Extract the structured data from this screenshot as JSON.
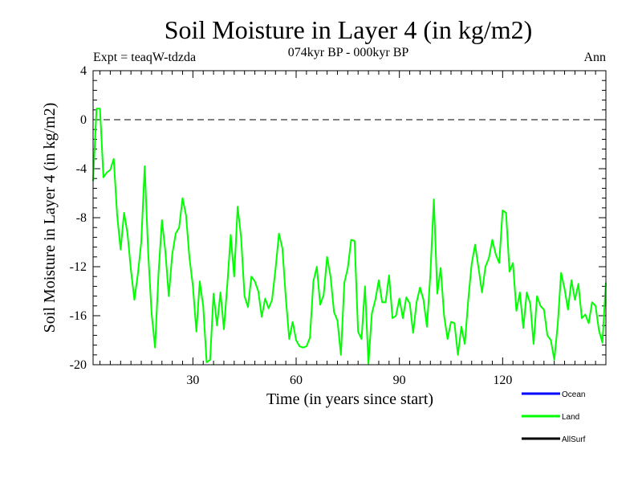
{
  "chart_data": {
    "type": "line",
    "title": "Soil Moisture in Layer 4 (in kg/m2)",
    "subtitle": "074kyr BP - 000kyr BP",
    "expt_label": "Expt = teaqW-tdzda",
    "season_label": "Ann",
    "xlabel": "Time (in years since start)",
    "ylabel": "Soil Moisture in Layer 4 (in kg/m2)",
    "xlim": [
      1,
      150
    ],
    "ylim": [
      -20,
      4
    ],
    "x_ticks": [
      30,
      60,
      90,
      120
    ],
    "x_tick_labels": [
      "30",
      "60",
      "90",
      "120"
    ],
    "y_ticks": [
      -20,
      -16,
      -12,
      -8,
      -4,
      0,
      4
    ],
    "y_tick_labels": [
      "-20",
      "-16",
      "-12",
      "-8",
      "-4",
      "0",
      "4"
    ],
    "reference_line": 0,
    "legend": [
      {
        "name": "Ocean",
        "color": "#0000ff"
      },
      {
        "name": "Land",
        "color": "#00ff00"
      },
      {
        "name": "AllSurf",
        "color": "#000000"
      }
    ],
    "series": [
      {
        "name": "Land",
        "color": "#00ff00",
        "x": [
          1,
          2,
          3,
          4,
          5,
          6,
          7,
          8,
          9,
          10,
          11,
          12,
          13,
          14,
          15,
          16,
          17,
          18,
          19,
          20,
          21,
          22,
          23,
          24,
          25,
          26,
          27,
          28,
          29,
          30,
          31,
          32,
          33,
          34,
          35,
          36,
          37,
          38,
          39,
          40,
          41,
          42,
          43,
          44,
          45,
          46,
          47,
          48,
          49,
          50,
          51,
          52,
          53,
          54,
          55,
          56,
          57,
          58,
          59,
          60,
          61,
          62,
          63,
          64,
          65,
          66,
          67,
          68,
          69,
          70,
          71,
          72,
          73,
          74,
          75,
          76,
          77,
          78,
          79,
          80,
          81,
          82,
          83,
          84,
          85,
          86,
          87,
          88,
          89,
          90,
          91,
          92,
          93,
          94,
          95,
          96,
          97,
          98,
          99,
          100,
          101,
          102,
          103,
          104,
          105,
          106,
          107,
          108,
          109,
          110,
          111,
          112,
          113,
          114,
          115,
          116,
          117,
          118,
          119,
          120,
          121,
          122,
          123,
          124,
          125,
          126,
          127,
          128,
          129,
          130,
          131,
          132,
          133,
          134,
          135,
          136,
          137,
          138,
          139,
          140,
          141,
          142,
          143,
          144,
          145,
          146,
          147,
          148,
          149,
          150
        ],
        "values": [
          -5.0,
          0.9,
          0.9,
          -4.7,
          -4.3,
          -4.1,
          -3.2,
          -7.8,
          -10.6,
          -7.6,
          -9.3,
          -12.3,
          -14.7,
          -12.6,
          -10.0,
          -3.8,
          -10.8,
          -15.8,
          -18.6,
          -12.6,
          -8.2,
          -10.8,
          -14.4,
          -11.0,
          -9.3,
          -8.8,
          -6.4,
          -7.8,
          -11.3,
          -13.6,
          -17.3,
          -13.2,
          -15.2,
          -19.8,
          -19.6,
          -14.2,
          -16.8,
          -14.1,
          -17.1,
          -13.4,
          -9.4,
          -12.8,
          -7.1,
          -9.6,
          -14.4,
          -15.3,
          -12.8,
          -13.2,
          -14.0,
          -16.1,
          -14.6,
          -15.4,
          -14.7,
          -12.2,
          -9.3,
          -10.5,
          -14.6,
          -17.9,
          -16.5,
          -18.0,
          -18.5,
          -18.6,
          -18.5,
          -17.8,
          -13.2,
          -12.0,
          -15.1,
          -14.3,
          -11.2,
          -12.8,
          -15.7,
          -16.4,
          -19.2,
          -13.3,
          -12.1,
          -9.8,
          -9.9,
          -17.3,
          -17.9,
          -13.6,
          -19.9,
          -15.8,
          -14.7,
          -13.1,
          -14.9,
          -14.9,
          -12.7,
          -16.2,
          -16.0,
          -14.6,
          -16.2,
          -14.5,
          -15.0,
          -17.4,
          -14.9,
          -13.7,
          -14.7,
          -16.9,
          -12.6,
          -6.5,
          -14.2,
          -12.1,
          -16.0,
          -17.9,
          -16.5,
          -16.6,
          -19.2,
          -16.9,
          -18.3,
          -14.7,
          -11.8,
          -10.2,
          -12.1,
          -14.1,
          -12.0,
          -11.3,
          -9.8,
          -11.0,
          -11.7,
          -7.4,
          -7.6,
          -12.4,
          -11.7,
          -15.6,
          -14.1,
          -17.0,
          -14.1,
          -15.0,
          -18.3,
          -14.4,
          -15.2,
          -15.5,
          -17.6,
          -18.0,
          -19.6,
          -16.7,
          -12.5,
          -13.8,
          -15.5,
          -13.1,
          -14.7,
          -13.4,
          -16.2,
          -15.9,
          -16.6,
          -14.9,
          -15.2,
          -17.2,
          -18.2,
          -13.3
        ]
      }
    ]
  }
}
